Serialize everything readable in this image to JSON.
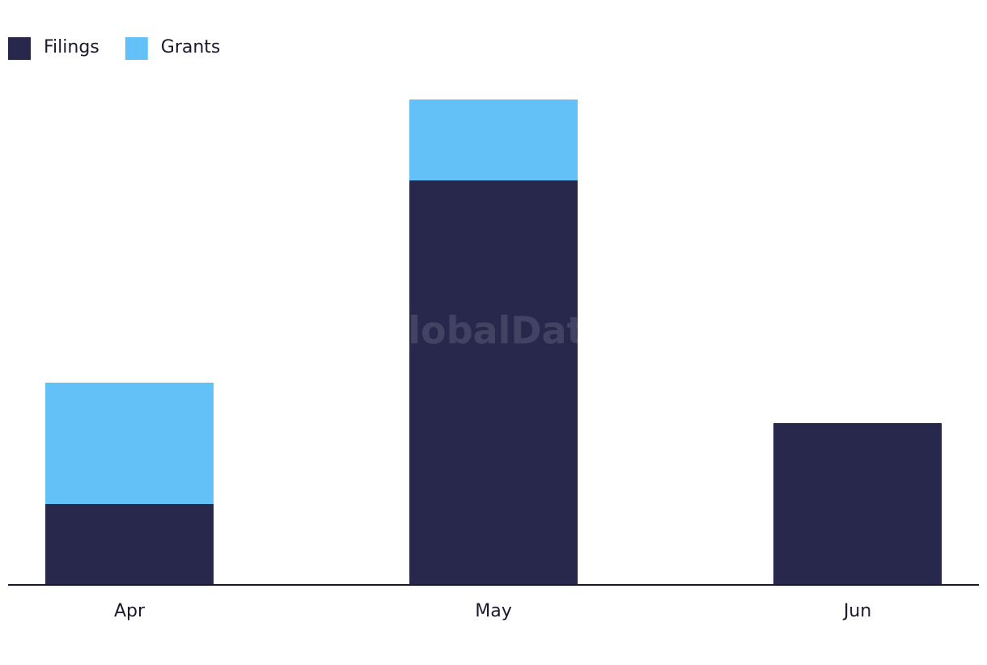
{
  "chart_data": {
    "type": "stacked-bar",
    "watermark": "GlobalData",
    "categories": [
      "Apr",
      "May",
      "Jun"
    ],
    "series": [
      {
        "name": "Filings",
        "color": "#28284c",
        "values": [
          2,
          10,
          4
        ]
      },
      {
        "name": "Grants",
        "color": "#63c1f8",
        "values": [
          3,
          2,
          0
        ]
      }
    ],
    "ylim": [
      0,
      12
    ],
    "legend": "top-left"
  }
}
